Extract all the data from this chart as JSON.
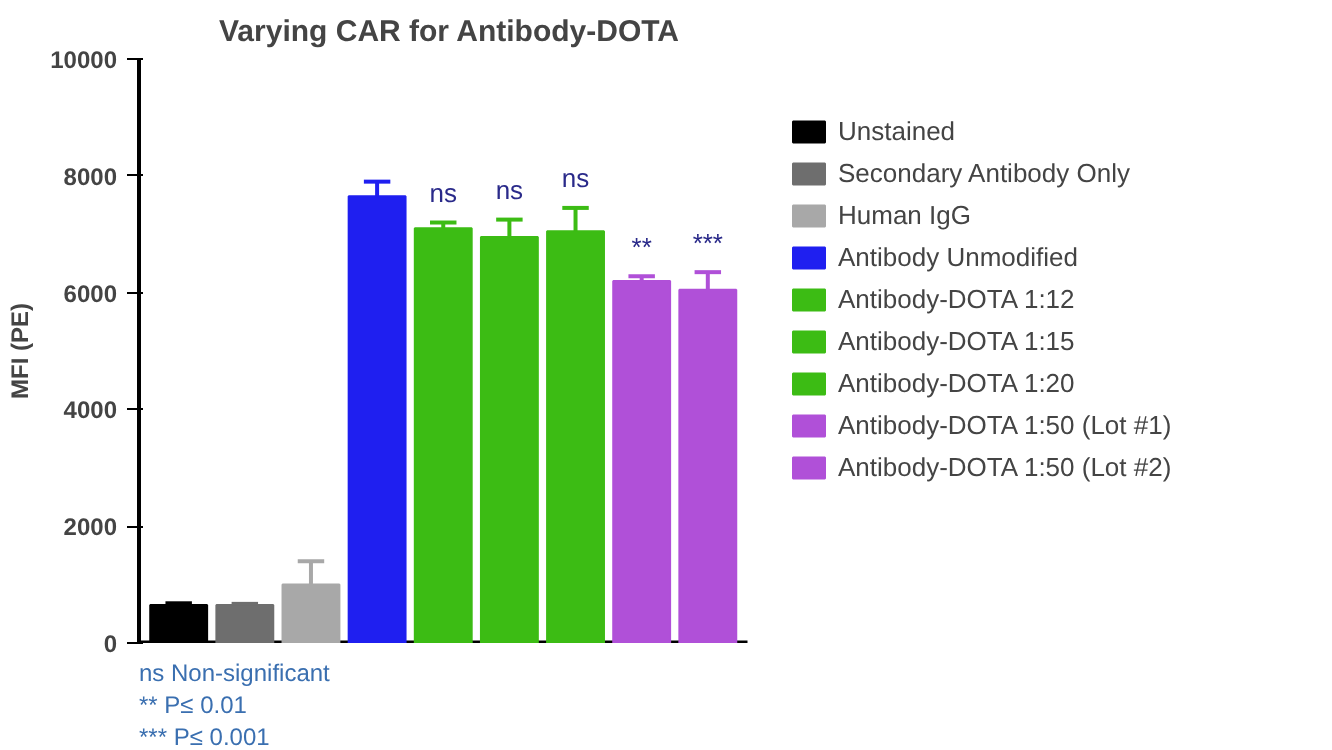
{
  "chart_data": {
    "type": "bar",
    "title": "Varying CAR for Antibody-DOTA",
    "ylabel": "MFI (PE)",
    "categories": [
      null,
      null,
      null,
      null,
      null,
      null,
      null,
      null,
      null
    ],
    "series": [
      {
        "name": "Unstained",
        "color": "#000000",
        "values": [
          650,
          null,
          null,
          null,
          null,
          null,
          null,
          null,
          null
        ],
        "errors": [
          [
            650,
            680
          ],
          null,
          null,
          null,
          null,
          null,
          null,
          null,
          null
        ]
      },
      {
        "name": "Secondary Antibody Only",
        "color": "#6e6e6e",
        "values": [
          null,
          650,
          null,
          null,
          null,
          null,
          null,
          null,
          null
        ],
        "errors": [
          null,
          [
            650,
            670
          ],
          null,
          null,
          null,
          null,
          null,
          null,
          null
        ]
      },
      {
        "name": "Human IgG",
        "color": "#a8a8a8",
        "values": [
          null,
          null,
          1000,
          null,
          null,
          null,
          null,
          null,
          null
        ],
        "errors": [
          null,
          null,
          [
            1000,
            1400
          ],
          null,
          null,
          null,
          null,
          null,
          null
        ]
      },
      {
        "name": "Antibody Unmodified",
        "color": "#1f1ff0",
        "values": [
          null,
          null,
          null,
          7650,
          null,
          null,
          null,
          null,
          null
        ],
        "errors": [
          null,
          null,
          null,
          [
            7650,
            7900
          ],
          null,
          null,
          null,
          null,
          null
        ]
      },
      {
        "name": "Antibody-DOTA 1:12",
        "color": "#3cbc14",
        "values": [
          null,
          null,
          null,
          null,
          7100,
          null,
          null,
          null,
          null
        ],
        "errors": [
          null,
          null,
          null,
          null,
          [
            7100,
            7200
          ],
          null,
          null,
          null,
          null
        ],
        "value_labels": [
          null,
          null,
          null,
          null,
          "ns",
          null,
          null,
          null,
          null
        ]
      },
      {
        "name": "Antibody-DOTA 1:15",
        "color": "#3cbc14",
        "values": [
          null,
          null,
          null,
          null,
          null,
          6950,
          null,
          null,
          null
        ],
        "errors": [
          null,
          null,
          null,
          null,
          null,
          [
            6950,
            7250
          ],
          null,
          null,
          null
        ],
        "value_labels": [
          null,
          null,
          null,
          null,
          null,
          "ns",
          null,
          null,
          null
        ]
      },
      {
        "name": "Antibody-DOTA 1:20",
        "color": "#3cbc14",
        "values": [
          null,
          null,
          null,
          null,
          null,
          null,
          7050,
          null,
          null
        ],
        "errors": [
          null,
          null,
          null,
          null,
          null,
          null,
          [
            7050,
            7450
          ],
          null,
          null
        ],
        "value_labels": [
          null,
          null,
          null,
          null,
          null,
          null,
          "ns",
          null,
          null
        ]
      },
      {
        "name": "Antibody-DOTA 1:50 (Lot #1)",
        "color": "#b050d8",
        "values": [
          null,
          null,
          null,
          null,
          null,
          null,
          null,
          6200,
          null
        ],
        "errors": [
          null,
          null,
          null,
          null,
          null,
          null,
          null,
          [
            6200,
            6280
          ],
          null
        ],
        "value_labels": [
          null,
          null,
          null,
          null,
          null,
          null,
          null,
          "**",
          null
        ]
      },
      {
        "name": "Antibody-DOTA 1:50 (Lot #2)",
        "color": "#b050d8",
        "values": [
          null,
          null,
          null,
          null,
          null,
          null,
          null,
          null,
          6050
        ],
        "errors": [
          null,
          null,
          null,
          null,
          null,
          null,
          null,
          null,
          [
            6050,
            6350
          ]
        ],
        "value_labels": [
          null,
          null,
          null,
          null,
          null,
          null,
          null,
          null,
          "***"
        ]
      }
    ],
    "ylim": [
      0,
      10000
    ],
    "yticks": [
      0,
      2000,
      4000,
      6000,
      8000,
      10000
    ],
    "grid": false,
    "legend": "right",
    "tick_labels": "y",
    "annotations": [
      "ns  Non-significant",
      "**   P≤ 0.01",
      "***  P≤ 0.001"
    ]
  }
}
